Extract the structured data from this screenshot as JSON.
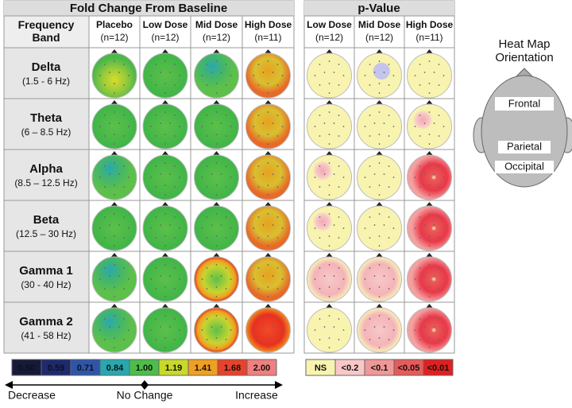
{
  "fold_change": {
    "title": "Fold Change From Baseline",
    "band_header": "Frequency Band",
    "columns": [
      {
        "name": "Placebo",
        "n": "(n=12)"
      },
      {
        "name": "Low Dose",
        "n": "(n=12)"
      },
      {
        "name": "Mid Dose",
        "n": "(n=12)"
      },
      {
        "name": "High Dose",
        "n": "(n=11)"
      }
    ]
  },
  "p_value": {
    "title": "p-Value",
    "columns": [
      {
        "name": "Low Dose",
        "n": "(n=12)"
      },
      {
        "name": "Mid Dose",
        "n": "(n=12)"
      },
      {
        "name": "High Dose",
        "n": "(n=11)"
      }
    ]
  },
  "bands": [
    {
      "name": "Delta",
      "range": "(1.5 - 6 Hz)"
    },
    {
      "name": "Theta",
      "range": "(6 – 8.5 Hz)"
    },
    {
      "name": "Alpha",
      "range": "(8.5 – 12.5 Hz)"
    },
    {
      "name": "Beta",
      "range": "(12.5 – 30 Hz)"
    },
    {
      "name": "Gamma 1",
      "range": "(30 - 40 Hz)"
    },
    {
      "name": "Gamma 2",
      "range": "(41 - 58 Hz)"
    }
  ],
  "orientation": {
    "title": [
      "Heat Map",
      "Orientation"
    ],
    "labels": [
      "Frontal",
      "Parietal",
      "Occipital"
    ]
  },
  "fold_scale": {
    "labels": [
      "0.50",
      "0.59",
      "0.71",
      "0.84",
      "1.00",
      "1.19",
      "1.41",
      "1.68",
      "2.00"
    ],
    "colors": [
      "#161a3a",
      "#1e2a6e",
      "#2f55a8",
      "#27a8b0",
      "#4dbd4a",
      "#c8d92a",
      "#f0a020",
      "#e8432a",
      "#f08080"
    ],
    "left": "Decrease",
    "middle": "No Change",
    "right": "Increase"
  },
  "p_scale": {
    "labels": [
      "NS",
      "<0.2",
      "<0.1",
      "<0.05",
      "<0.01"
    ],
    "colors": [
      "#f8f4b0",
      "#f8c8c8",
      "#f09898",
      "#e85a5a",
      "#e02020"
    ]
  }
}
